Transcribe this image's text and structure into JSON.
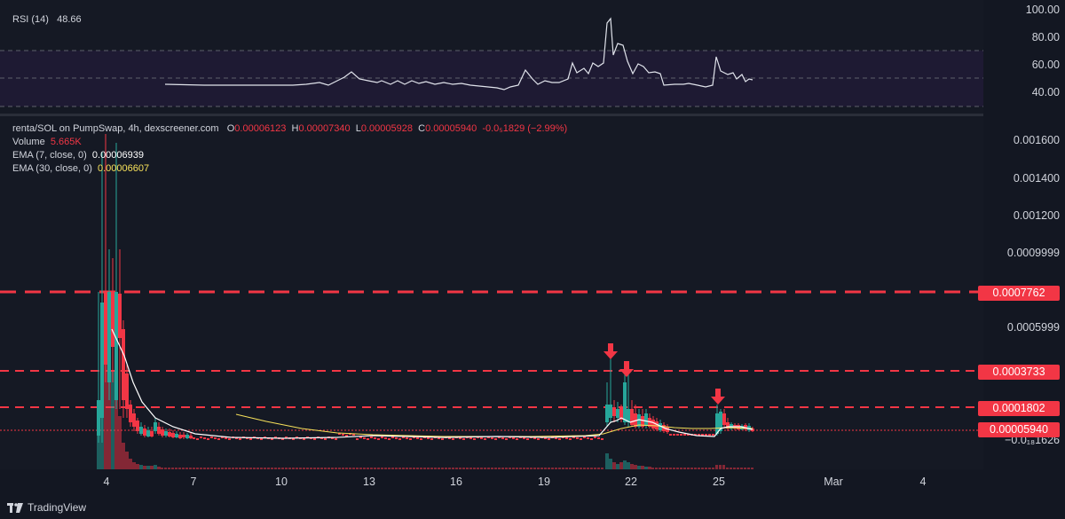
{
  "rsi": {
    "label": "RSI (14)",
    "value": "48.66",
    "levels": [
      "100.00",
      "80.00",
      "60.00",
      "40.00"
    ]
  },
  "legend": {
    "symbol": "renta/SOL on PumpSwap, 4h, dexscreener.com",
    "o_label": "O",
    "o_value": "0.00006123",
    "h_label": "H",
    "h_value": "0.00007340",
    "l_label": "L",
    "l_value": "0.00005928",
    "c_label": "C",
    "c_value": "0.00005940",
    "change": "-0.0₅1829 (−2.99%)",
    "volume_label": "Volume",
    "volume_value": "5.665K",
    "ema7_label": "EMA (7, close, 0)",
    "ema7_value": "0.00006939",
    "ema30_label": "EMA (30, close, 0)",
    "ema30_value": "0.00006607"
  },
  "price_axis": {
    "ticks": [
      "0.001600",
      "0.001400",
      "0.001200",
      "0.0009999",
      "0.0005999",
      "0.0001626"
    ],
    "neg_tick": "−0.0₁₈1626",
    "tags": [
      "0.0007762",
      "0.0003733",
      "0.0001802",
      "0.00005940"
    ]
  },
  "x_axis": {
    "ticks": [
      "4",
      "7",
      "10",
      "13",
      "16",
      "19",
      "22",
      "25",
      "Mar",
      "4"
    ]
  },
  "footer": {
    "brand": "TradingView"
  },
  "colors": {
    "up": "#26a69a",
    "down": "#f23645",
    "ema7": "#ffffff",
    "ema30": "#f7e15a",
    "level": "#f23645"
  }
}
